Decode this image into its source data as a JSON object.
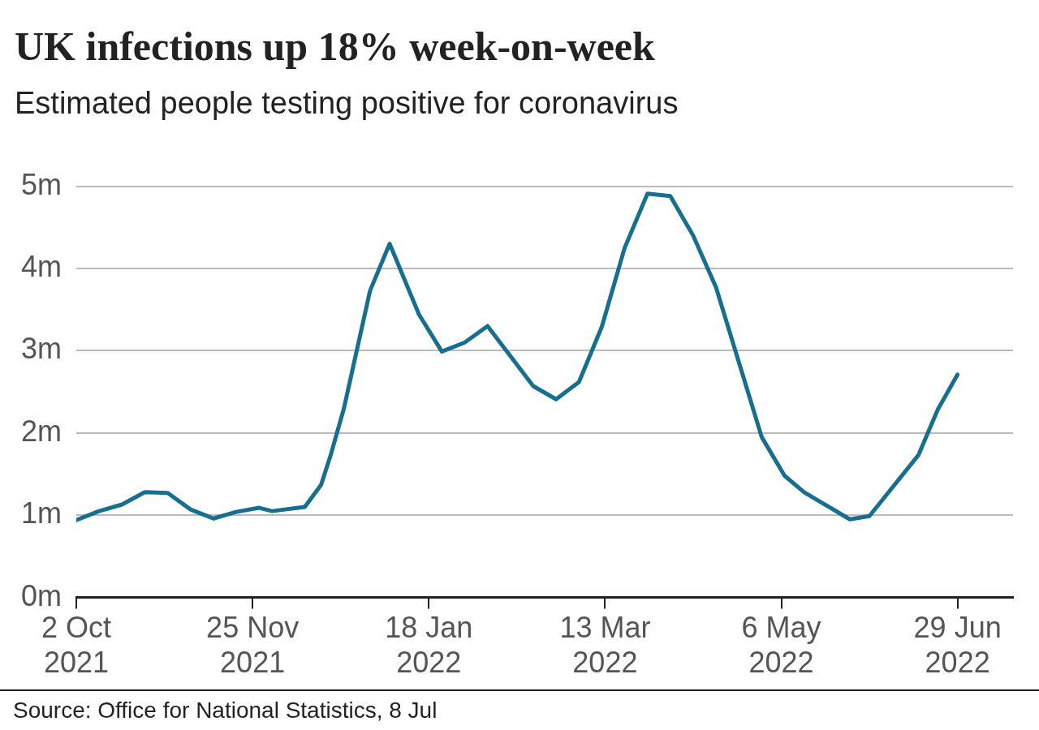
{
  "chart_data": {
    "type": "line",
    "title": "UK infections up 18% week-on-week",
    "subtitle": "Estimated people testing positive for coronavirus",
    "x": [
      "2021-10-02",
      "2021-10-09",
      "2021-10-16",
      "2021-10-23",
      "2021-10-30",
      "2021-11-06",
      "2021-11-13",
      "2021-11-20",
      "2021-11-27",
      "2021-12-01",
      "2021-12-11",
      "2021-12-16",
      "2021-12-19",
      "2021-12-23",
      "2021-12-31",
      "2022-01-06",
      "2022-01-15",
      "2022-01-22",
      "2022-01-29",
      "2022-02-05",
      "2022-02-19",
      "2022-02-26",
      "2022-03-05",
      "2022-03-12",
      "2022-03-19",
      "2022-03-26",
      "2022-04-02",
      "2022-04-09",
      "2022-04-16",
      "2022-04-30",
      "2022-05-07",
      "2022-05-13",
      "2022-05-27",
      "2022-06-02",
      "2022-06-17",
      "2022-06-23",
      "2022-06-29"
    ],
    "series": [
      {
        "color": "#176f90",
        "values": [
          0.94,
          1.05,
          1.13,
          1.28,
          1.27,
          1.07,
          0.96,
          1.04,
          1.09,
          1.05,
          1.1,
          1.37,
          1.74,
          2.3,
          3.73,
          4.3,
          3.44,
          2.99,
          3.1,
          3.3,
          2.57,
          2.41,
          2.62,
          3.29,
          4.25,
          4.91,
          4.88,
          4.4,
          3.77,
          1.95,
          1.48,
          1.28,
          0.95,
          0.99,
          1.73,
          2.29,
          2.71
        ]
      }
    ],
    "xlim": [
      "2021-10-02",
      "2022-07-16"
    ],
    "xticks": [
      {
        "value": "2021-10-02",
        "label": "2 Oct 2021"
      },
      {
        "value": "2021-11-25",
        "label": "25 Nov 2021"
      },
      {
        "value": "2022-01-18",
        "label": "18 Jan 2022"
      },
      {
        "value": "2022-03-13",
        "label": "13 Mar 2022"
      },
      {
        "value": "2022-05-06",
        "label": "6 May 2022"
      },
      {
        "value": "2022-06-29",
        "label": "29 Jun 2022"
      }
    ],
    "ylim": [
      0,
      5
    ],
    "yticks": [
      {
        "value": 0,
        "label": "0m"
      },
      {
        "value": 1,
        "label": "1m"
      },
      {
        "value": 2,
        "label": "2m"
      },
      {
        "value": 3,
        "label": "3m"
      },
      {
        "value": 4,
        "label": "4m"
      },
      {
        "value": 5,
        "label": "5m"
      }
    ],
    "grid": "y",
    "legend": false,
    "marker": "none",
    "line_style": "solid",
    "annotations": [
      "Source: Office for National Statistics, 8 Jul"
    ]
  }
}
